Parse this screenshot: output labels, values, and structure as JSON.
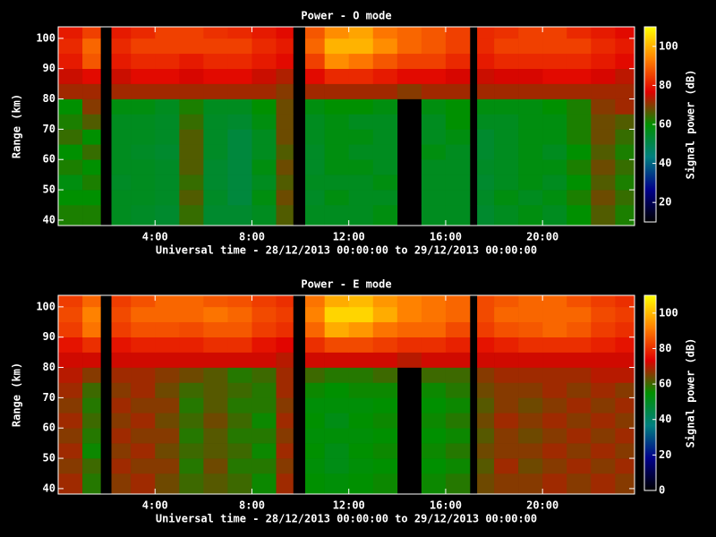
{
  "chart_data": [
    {
      "type": "heatmap",
      "title": "Power - O mode",
      "xlabel": "Universal time - 28/12/2013 00:00:00 to 29/12/2013 00:00:00",
      "ylabel": "Range (km)",
      "colorbar_label": "Signal power (dB)",
      "x_edges": [
        0,
        1,
        1.75,
        2.2,
        3,
        4,
        5,
        6,
        7,
        8,
        9,
        9.7,
        10.2,
        11,
        12,
        13,
        14,
        15,
        16,
        17,
        17.3,
        18,
        19,
        20,
        21,
        22,
        23,
        23.8
      ],
      "y_edges": [
        38.2,
        45,
        50,
        55,
        60,
        65,
        70,
        75,
        80,
        85,
        90,
        95,
        100,
        103.8
      ],
      "z": [
        [
          62,
          62,
          null,
          56,
          55,
          54,
          64,
          54,
          54,
          56,
          66,
          null,
          56,
          56,
          56,
          58,
          null,
          56,
          56,
          null,
          54,
          56,
          58,
          56,
          60,
          66,
          62
        ],
        [
          60,
          60,
          null,
          56,
          56,
          55,
          66,
          55,
          52,
          58,
          68,
          null,
          55,
          58,
          56,
          56,
          null,
          56,
          56,
          null,
          55,
          58,
          56,
          58,
          62,
          68,
          64
        ],
        [
          58,
          62,
          null,
          55,
          56,
          55,
          64,
          54,
          52,
          56,
          66,
          null,
          56,
          56,
          56,
          58,
          null,
          56,
          56,
          null,
          54,
          56,
          58,
          56,
          60,
          66,
          62
        ],
        [
          62,
          60,
          null,
          56,
          56,
          55,
          66,
          54,
          52,
          58,
          68,
          null,
          55,
          58,
          58,
          56,
          null,
          56,
          56,
          null,
          55,
          56,
          58,
          58,
          62,
          68,
          64
        ],
        [
          60,
          64,
          null,
          56,
          55,
          54,
          66,
          55,
          52,
          56,
          66,
          null,
          55,
          58,
          56,
          56,
          null,
          58,
          56,
          null,
          54,
          56,
          58,
          56,
          60,
          66,
          62
        ],
        [
          64,
          60,
          null,
          56,
          56,
          55,
          66,
          55,
          52,
          56,
          68,
          null,
          56,
          58,
          58,
          56,
          null,
          56,
          58,
          null,
          54,
          56,
          58,
          58,
          62,
          68,
          64
        ],
        [
          62,
          66,
          null,
          56,
          56,
          55,
          64,
          55,
          54,
          58,
          68,
          null,
          56,
          58,
          56,
          56,
          null,
          56,
          60,
          null,
          56,
          56,
          58,
          58,
          62,
          68,
          66
        ],
        [
          60,
          70,
          null,
          58,
          58,
          56,
          62,
          56,
          56,
          60,
          68,
          null,
          58,
          60,
          60,
          58,
          null,
          58,
          60,
          null,
          58,
          58,
          58,
          60,
          62,
          70,
          72
        ],
        [
          72,
          72,
          null,
          72,
          72,
          72,
          72,
          72,
          72,
          72,
          70,
          null,
          72,
          72,
          72,
          72,
          70,
          72,
          72,
          null,
          72,
          72,
          72,
          72,
          72,
          72,
          72
        ],
        [
          75,
          78,
          null,
          75,
          78,
          78,
          76,
          78,
          78,
          75,
          73,
          null,
          78,
          82,
          82,
          80,
          78,
          78,
          76,
          null,
          75,
          76,
          76,
          78,
          78,
          76,
          74
        ],
        [
          80,
          88,
          null,
          80,
          82,
          82,
          80,
          82,
          82,
          80,
          78,
          null,
          85,
          95,
          92,
          88,
          85,
          85,
          82,
          null,
          80,
          82,
          82,
          82,
          82,
          80,
          78
        ],
        [
          82,
          90,
          null,
          82,
          85,
          85,
          85,
          85,
          85,
          82,
          80,
          null,
          90,
          100,
          100,
          95,
          90,
          88,
          85,
          null,
          82,
          85,
          85,
          85,
          85,
          82,
          80
        ],
        [
          80,
          85,
          null,
          80,
          82,
          85,
          85,
          83,
          82,
          80,
          78,
          null,
          88,
          95,
          98,
          92,
          90,
          88,
          85,
          null,
          82,
          83,
          85,
          85,
          82,
          80,
          78
        ]
      ],
      "xlim": [
        0,
        23.8
      ],
      "ylim": [
        38.2,
        103.8
      ],
      "xticks": [
        {
          "value": 4,
          "label": "4:00"
        },
        {
          "value": 8,
          "label": "8:00"
        },
        {
          "value": 12,
          "label": "12:00"
        },
        {
          "value": 16,
          "label": "16:00"
        },
        {
          "value": 20,
          "label": "20:00"
        }
      ],
      "yticks": [
        40,
        50,
        60,
        70,
        80,
        90,
        100
      ],
      "clim": [
        10,
        110
      ],
      "cticks": [
        20,
        40,
        60,
        80,
        100
      ],
      "colormap": [
        "#000000",
        "#00008b",
        "#008080",
        "#009000",
        "#e00000",
        "#ff8000",
        "#ffff00"
      ]
    },
    {
      "type": "heatmap",
      "title": "Power - E mode",
      "xlabel": "Universal time - 28/12/2013 00:00:00 to 29/12/2013 00:00:00",
      "ylabel": "Range (km)",
      "colorbar_label": "Signal power (dB)",
      "x_edges": [
        0,
        1,
        1.75,
        2.2,
        3,
        4,
        5,
        6,
        7,
        8,
        9,
        9.7,
        10.2,
        11,
        12,
        13,
        14,
        15,
        16,
        17,
        17.3,
        18,
        19,
        20,
        21,
        22,
        23,
        23.8
      ],
      "y_edges": [
        38.2,
        45,
        50,
        55,
        60,
        65,
        70,
        75,
        80,
        85,
        90,
        95,
        100,
        103.8
      ],
      "z": [
        [
          68,
          58,
          null,
          66,
          68,
          64,
          60,
          62,
          60,
          56,
          68,
          null,
          55,
          54,
          55,
          56,
          null,
          56,
          58,
          null,
          64,
          66,
          66,
          68,
          66,
          68,
          66
        ],
        [
          66,
          60,
          null,
          68,
          66,
          66,
          58,
          64,
          58,
          58,
          66,
          null,
          54,
          52,
          54,
          55,
          null,
          55,
          56,
          null,
          62,
          68,
          64,
          66,
          68,
          66,
          68
        ],
        [
          68,
          56,
          null,
          66,
          68,
          64,
          60,
          62,
          60,
          56,
          68,
          null,
          55,
          52,
          55,
          56,
          null,
          56,
          58,
          null,
          64,
          66,
          66,
          68,
          66,
          68,
          66
        ],
        [
          66,
          58,
          null,
          68,
          66,
          66,
          58,
          62,
          58,
          58,
          66,
          null,
          54,
          54,
          54,
          55,
          null,
          55,
          56,
          null,
          62,
          66,
          64,
          66,
          68,
          66,
          68
        ],
        [
          68,
          60,
          null,
          66,
          68,
          64,
          60,
          64,
          60,
          56,
          68,
          null,
          55,
          52,
          55,
          56,
          null,
          56,
          58,
          null,
          64,
          68,
          66,
          68,
          66,
          68,
          66
        ],
        [
          66,
          58,
          null,
          68,
          66,
          66,
          58,
          62,
          58,
          58,
          66,
          null,
          54,
          54,
          54,
          55,
          null,
          55,
          56,
          null,
          62,
          66,
          64,
          66,
          68,
          66,
          68
        ],
        [
          68,
          60,
          null,
          66,
          68,
          64,
          60,
          62,
          60,
          58,
          68,
          null,
          56,
          55,
          56,
          56,
          null,
          56,
          58,
          null,
          64,
          66,
          66,
          68,
          66,
          68,
          66
        ],
        [
          70,
          66,
          null,
          68,
          68,
          66,
          64,
          62,
          58,
          60,
          68,
          null,
          60,
          58,
          58,
          60,
          null,
          60,
          60,
          null,
          66,
          68,
          68,
          68,
          68,
          70,
          70
        ],
        [
          72,
          72,
          null,
          72,
          72,
          72,
          72,
          72,
          72,
          72,
          70,
          null,
          72,
          72,
          72,
          72,
          70,
          72,
          72,
          null,
          72,
          72,
          72,
          72,
          72,
          72,
          72
        ],
        [
          76,
          80,
          null,
          76,
          78,
          78,
          78,
          80,
          80,
          76,
          74,
          null,
          80,
          84,
          84,
          82,
          80,
          80,
          78,
          null,
          76,
          78,
          80,
          80,
          80,
          78,
          76
        ],
        [
          82,
          90,
          null,
          82,
          85,
          85,
          84,
          86,
          86,
          82,
          80,
          null,
          88,
          98,
          95,
          90,
          88,
          88,
          84,
          null,
          82,
          85,
          86,
          88,
          86,
          82,
          80
        ],
        [
          84,
          92,
          null,
          84,
          88,
          88,
          88,
          90,
          88,
          84,
          82,
          null,
          92,
          104,
          104,
          98,
          92,
          90,
          88,
          null,
          84,
          88,
          88,
          88,
          88,
          84,
          82
        ],
        [
          82,
          88,
          null,
          82,
          85,
          88,
          88,
          86,
          85,
          82,
          80,
          null,
          90,
          98,
          100,
          95,
          92,
          90,
          88,
          null,
          84,
          86,
          88,
          88,
          85,
          82,
          80
        ]
      ],
      "xlim": [
        0,
        23.8
      ],
      "ylim": [
        38.2,
        103.8
      ],
      "xticks": [
        {
          "value": 4,
          "label": "4:00"
        },
        {
          "value": 8,
          "label": "8:00"
        },
        {
          "value": 12,
          "label": "12:00"
        },
        {
          "value": 16,
          "label": "16:00"
        },
        {
          "value": 20,
          "label": "20:00"
        }
      ],
      "yticks": [
        40,
        50,
        60,
        70,
        80,
        90,
        100
      ],
      "clim": [
        0,
        110
      ],
      "cticks": [
        0,
        20,
        40,
        60,
        80,
        100
      ],
      "colormap": [
        "#000000",
        "#00008b",
        "#008080",
        "#009000",
        "#e00000",
        "#ff8000",
        "#ffff00"
      ]
    }
  ]
}
